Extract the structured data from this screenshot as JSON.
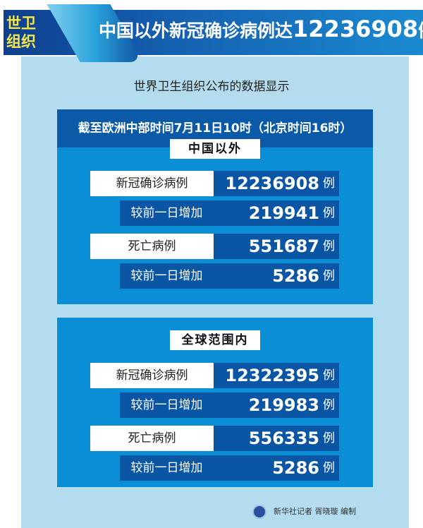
{
  "header": {
    "badge_line1": "世卫",
    "badge_line2": "组织",
    "title_text": "中国以外新冠确诊病例达",
    "title_number": "12236908",
    "title_unit": "例"
  },
  "source_line": "世界卫生组织公布的数据显示",
  "date_line": "截至欧洲中部时间7月11日10时（北京时间16时）",
  "sections": [
    {
      "title": "中国以外",
      "rows": [
        {
          "label": "新冠确诊病例",
          "value": "12236908",
          "unit": "例"
        },
        {
          "label": "较前一日增加",
          "value": "219941",
          "unit": "例"
        },
        {
          "label": "死亡病例",
          "value": "551687",
          "unit": "例"
        },
        {
          "label": "较前一日增加",
          "value": "5286",
          "unit": "例"
        }
      ]
    },
    {
      "title": "全球范围内",
      "rows": [
        {
          "label": "新冠确诊病例",
          "value": "12322395",
          "unit": "例"
        },
        {
          "label": "较前一日增加",
          "value": "219983",
          "unit": "例"
        },
        {
          "label": "死亡病例",
          "value": "556335",
          "unit": "例"
        },
        {
          "label": "较前一日增加",
          "value": "5286",
          "unit": "例"
        }
      ]
    }
  ],
  "credit": "新华社记者 胥晓璇 编制",
  "colors": {
    "banner": "#1560b0",
    "panel": "#b3dcef",
    "box": "#0a8ed5",
    "dark": "#0b56a4",
    "badge_text": "#f5e74a"
  }
}
